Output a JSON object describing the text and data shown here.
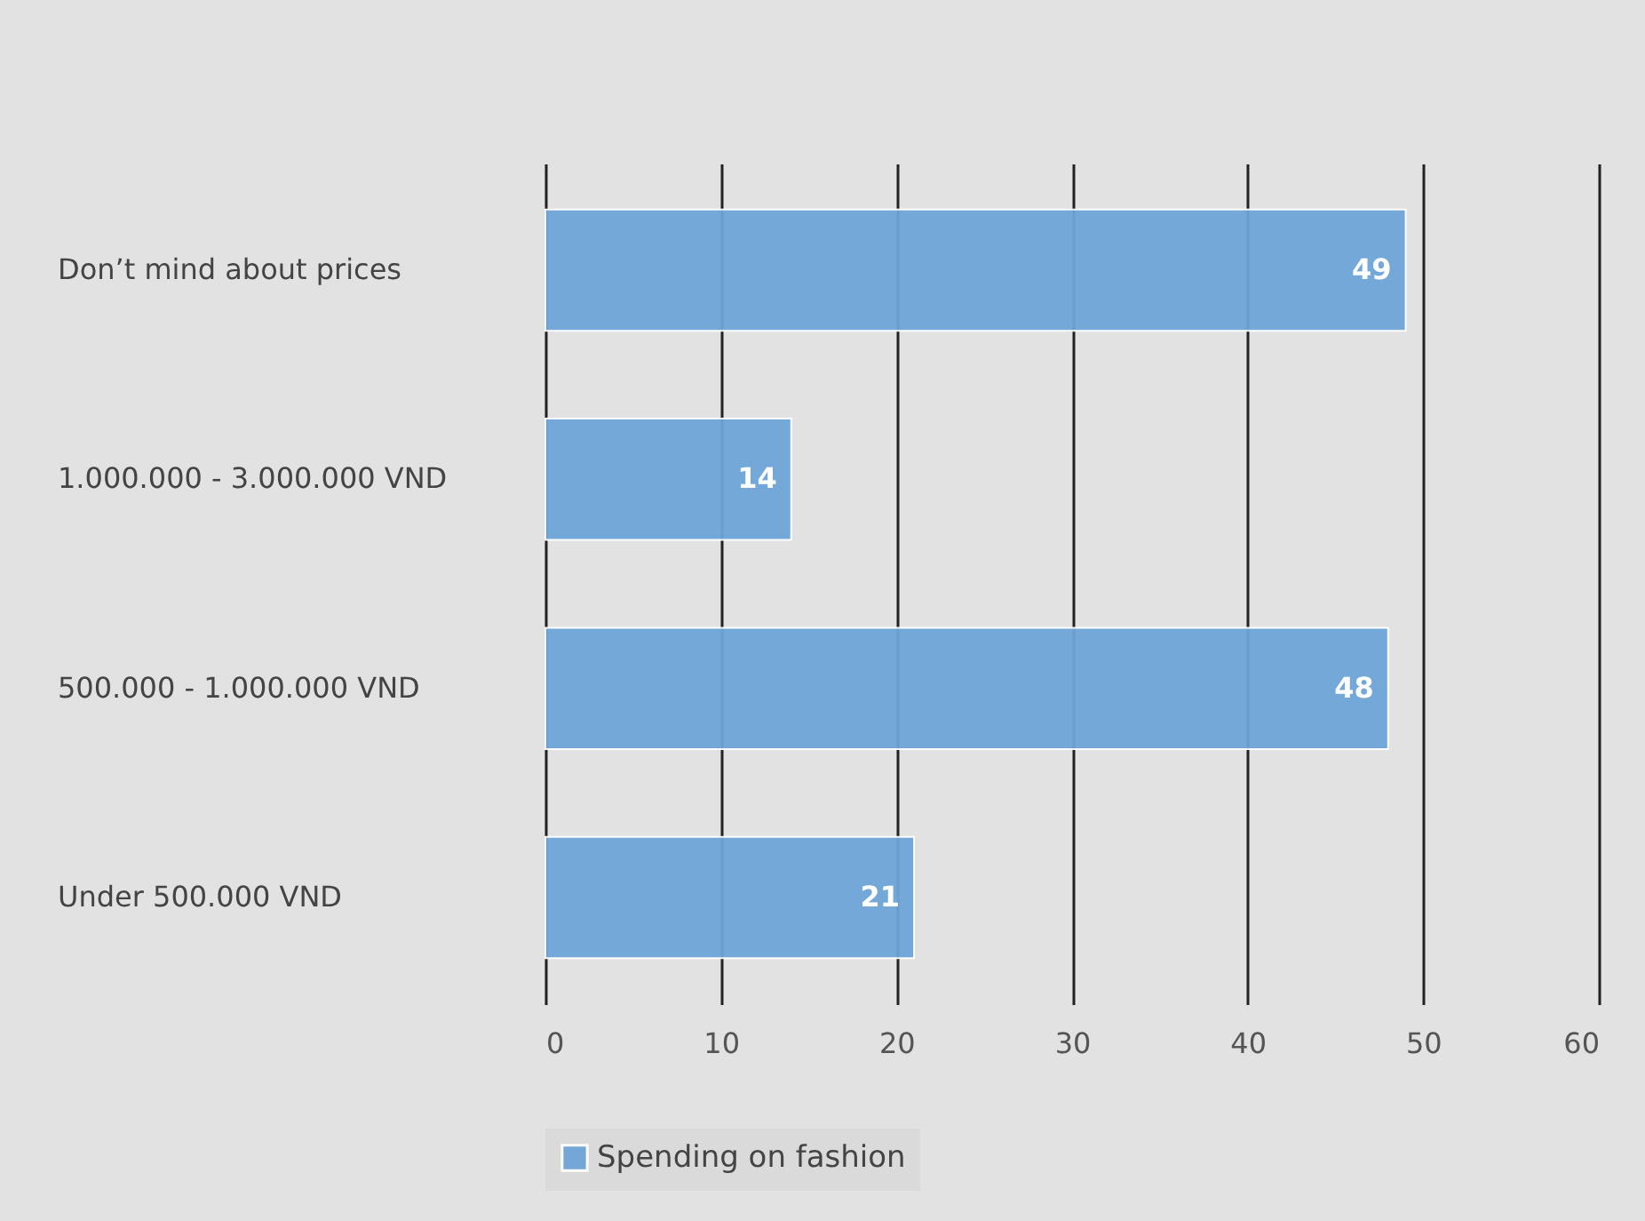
{
  "chart_data": {
    "type": "bar",
    "orientation": "horizontal",
    "categories": [
      "Don’t mind about prices",
      "1.000.000 - 3.000.000 VND",
      "500.000 - 1.000.000 VND",
      "Under 500.000 VND"
    ],
    "series": [
      {
        "name": "Spending on fashion",
        "color": "#6fa5d8",
        "values": [
          49,
          14,
          48,
          21
        ]
      }
    ],
    "xlim": [
      0,
      60
    ],
    "xticks": [
      0,
      10,
      20,
      30,
      40,
      50,
      60
    ],
    "grid": "x",
    "legend": "bottom",
    "data_labels": true
  }
}
